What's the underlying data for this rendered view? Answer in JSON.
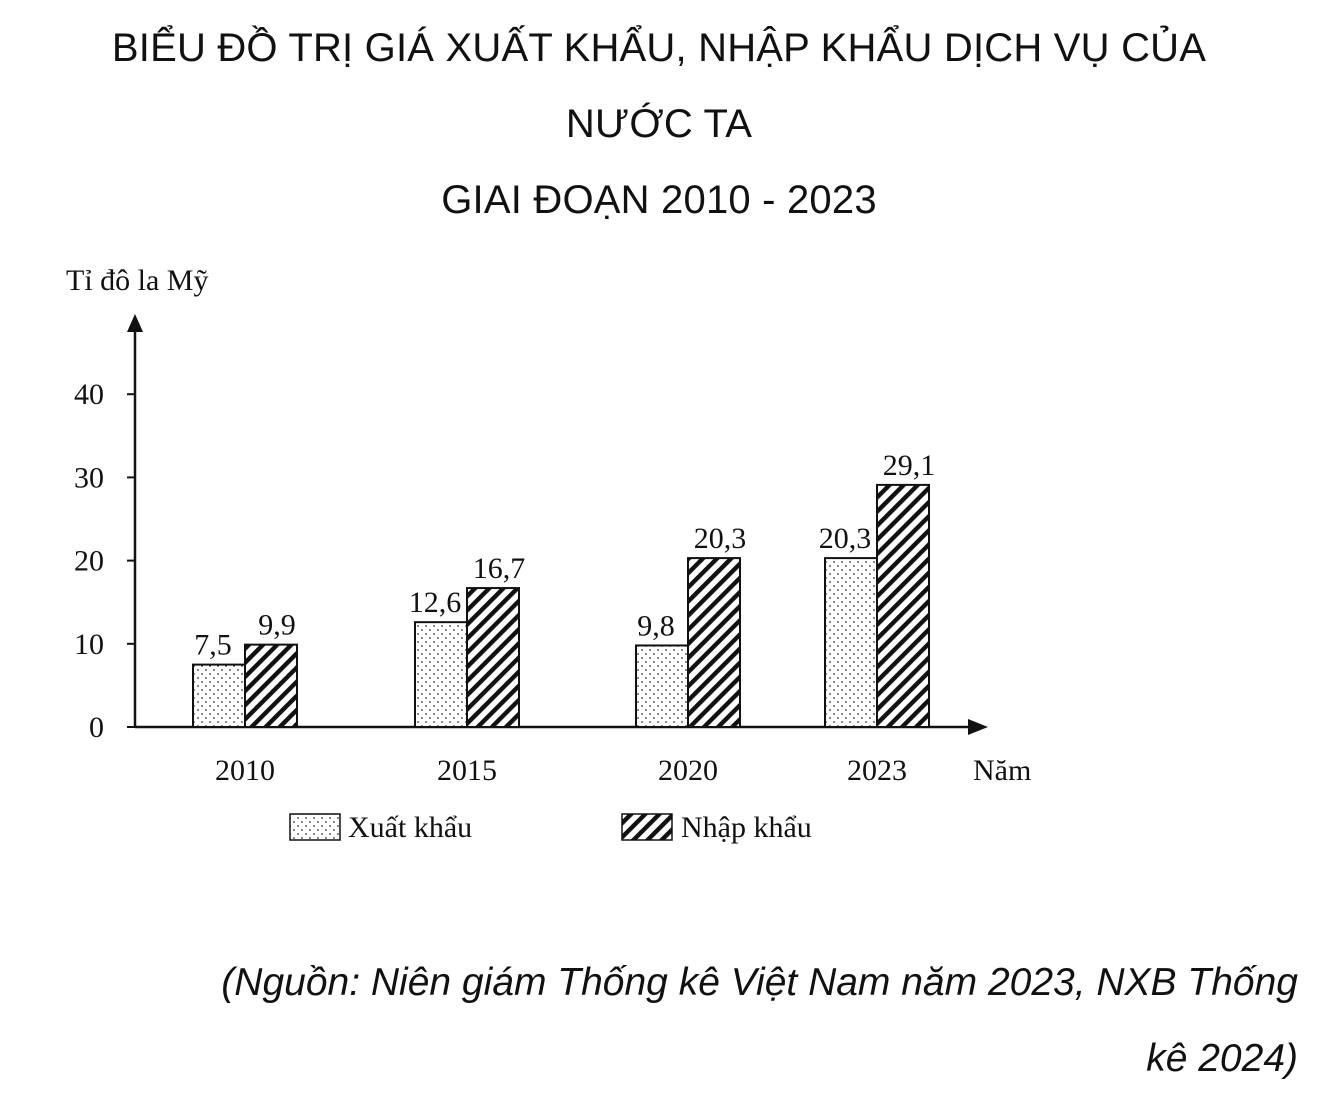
{
  "title": {
    "line1": "BIỂU ĐỒ TRỊ GIÁ XUẤT KHẨU, NHẬP KHẨU DỊCH VỤ CỦA",
    "line2": "NƯỚC TA",
    "line3": "GIAI ĐOẠN 2010 - 2023"
  },
  "source": {
    "line1": "(Nguồn: Niên giám Thống kê Việt Nam năm 2023, NXB Thống",
    "line2": "kê 2024)"
  },
  "chart_data": {
    "type": "bar",
    "ylabel": "Tỉ đô la Mỹ",
    "xlabel": "Năm",
    "categories": [
      "2010",
      "2015",
      "2020",
      "2023"
    ],
    "yticks": [
      0,
      10,
      20,
      30,
      40
    ],
    "ylim": [
      0,
      40
    ],
    "series": [
      {
        "name": "Xuất khẩu",
        "values": [
          7.5,
          12.6,
          9.8,
          20.3
        ],
        "labels": [
          "7,5",
          "12,6",
          "9,8",
          "20,3"
        ],
        "pattern": "dotted"
      },
      {
        "name": "Nhập khẩu",
        "values": [
          9.9,
          16.7,
          20.3,
          29.1
        ],
        "labels": [
          "9,9",
          "16,7",
          "20,3",
          "29,1"
        ],
        "pattern": "diagonal-hatch"
      }
    ],
    "legend_position": "bottom",
    "grid": false
  }
}
